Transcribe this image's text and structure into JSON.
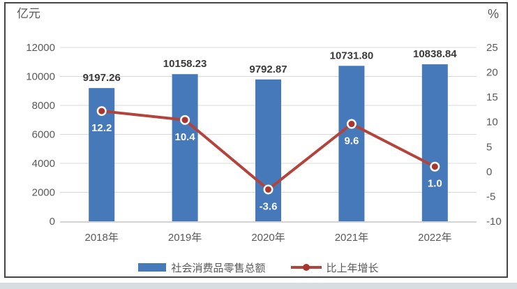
{
  "units": {
    "left": "亿元",
    "right": "%"
  },
  "legend": {
    "bar_label": "社会消费品零售总额",
    "line_label": "比上年增长"
  },
  "colors": {
    "bar": "#4579b9",
    "line": "#b2443c",
    "marker_fill": "#a8362f",
    "marker_ring": "#ffffff",
    "grid": "#d9d9d9",
    "axis_line": "#c6c6c6",
    "tick_text": "#595959",
    "value_label_text": "#3a3a3a",
    "pct_label_text": "#ffffff",
    "border": "#454545",
    "bottom_strip": "#d9dce1"
  },
  "chart_data": {
    "type": "bar",
    "subtype": "bar+line combo, dual axis",
    "categories": [
      "2018年",
      "2019年",
      "2020年",
      "2021年",
      "2022年"
    ],
    "series": [
      {
        "name": "社会消费品零售总额",
        "type": "bar",
        "axis": "left",
        "values": [
          9197.26,
          10158.23,
          9792.87,
          10731.8,
          10838.84
        ],
        "labels": [
          "9197.26",
          "10158.23",
          "9792.87",
          "10731.80",
          "10838.84"
        ]
      },
      {
        "name": "比上年增长",
        "type": "line",
        "axis": "right",
        "values": [
          12.2,
          10.4,
          -3.6,
          9.6,
          1.0
        ],
        "labels": [
          "12.2",
          "10.4",
          "-3.6",
          "9.6",
          "1.0"
        ]
      }
    ],
    "left_axis": {
      "unit": "亿元",
      "min": 0,
      "max": 12000,
      "step": 2000
    },
    "right_axis": {
      "unit": "%",
      "min": -10,
      "max": 25,
      "step": 5
    },
    "grid": true,
    "legend_position": "bottom"
  }
}
